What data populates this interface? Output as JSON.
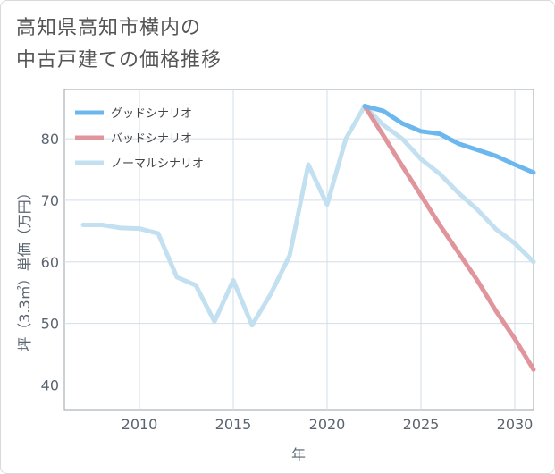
{
  "title": {
    "line1": "高知県高知市横内の",
    "line2": "中古戸建ての価格推移"
  },
  "chart_data": {
    "type": "line",
    "xlabel": "年",
    "ylabel": "坪（3.3㎡）単価（万円）",
    "xlim": [
      2006,
      2031
    ],
    "ylim": [
      36,
      88
    ],
    "xticks": [
      2010,
      2015,
      2020,
      2025,
      2030
    ],
    "yticks": [
      40,
      50,
      60,
      70,
      80
    ],
    "grid": true,
    "legend_position": "top-left",
    "series": [
      {
        "name": "グッドシナリオ",
        "color": "#6cb8ee",
        "x": [
          2022,
          2023,
          2024,
          2025,
          2026,
          2027,
          2028,
          2029,
          2030,
          2031
        ],
        "y": [
          85.3,
          84.5,
          82.5,
          81.2,
          80.8,
          79.2,
          78.2,
          77.2,
          75.8,
          74.5
        ]
      },
      {
        "name": "バッドシナリオ",
        "color": "#e0959c",
        "x": [
          2022,
          2023,
          2024,
          2025,
          2026,
          2027,
          2028,
          2029,
          2030,
          2031
        ],
        "y": [
          85.3,
          80.5,
          75.6,
          70.8,
          66.0,
          61.5,
          57.0,
          52.0,
          47.5,
          42.5
        ]
      },
      {
        "name": "ノーマルシナリオ",
        "color": "#c2e0ef",
        "x": [
          2007,
          2008,
          2009,
          2010,
          2011,
          2012,
          2013,
          2014,
          2015,
          2016,
          2017,
          2018,
          2019,
          2020,
          2021,
          2022,
          2023,
          2024,
          2025,
          2026,
          2027,
          2028,
          2029,
          2030,
          2031
        ],
        "y": [
          66.0,
          66.0,
          65.5,
          65.4,
          64.6,
          57.5,
          56.2,
          50.3,
          57.0,
          49.7,
          54.8,
          61.0,
          75.8,
          69.3,
          80.0,
          85.3,
          82.2,
          80.0,
          76.7,
          74.3,
          71.2,
          68.5,
          65.3,
          63.0,
          60.0
        ]
      }
    ]
  }
}
